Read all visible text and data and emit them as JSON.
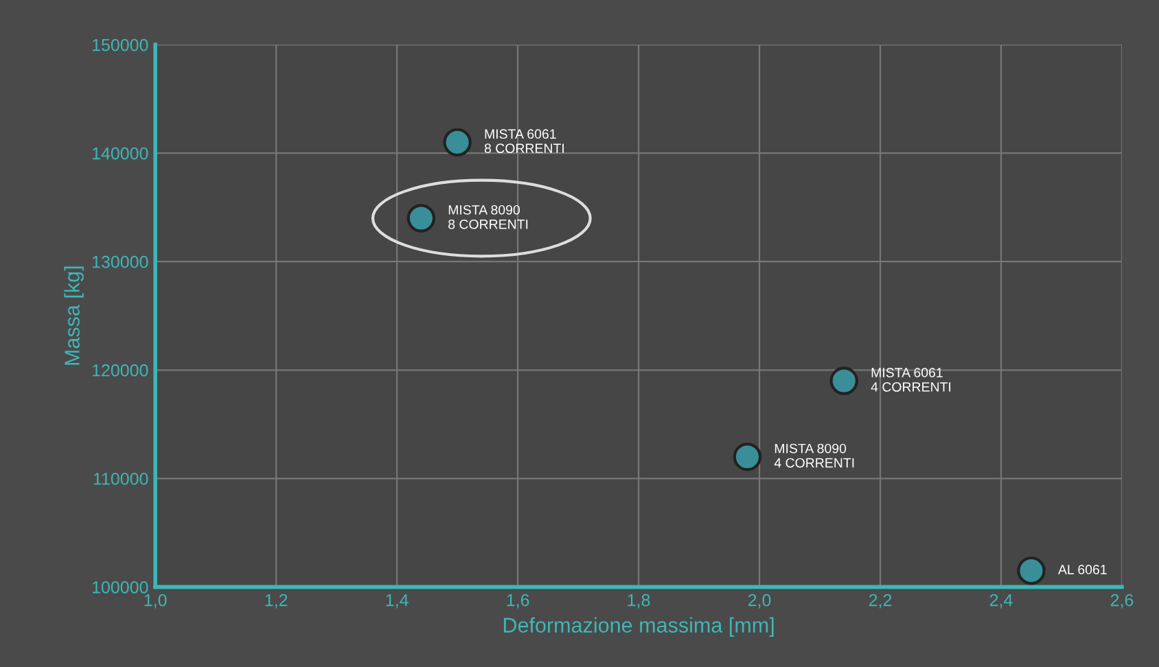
{
  "chart_data": {
    "type": "scatter",
    "xlabel": "Deformazione massima [mm]",
    "ylabel": "Massa [kg]",
    "x": [
      1.5,
      1.44,
      2.14,
      1.98,
      2.45
    ],
    "series": [
      {
        "color": "#3a8e98",
        "values": [
          141000,
          134000,
          119000,
          112000,
          101500
        ]
      }
    ],
    "annotations": [
      {
        "text": "MISTA 6061\n8 CORRENTI",
        "x": 1.5,
        "y": 141000
      },
      {
        "text": "MISTA 8090\n8 CORRENTI",
        "x": 1.44,
        "y": 134000
      },
      {
        "text": "MISTA 6061\n4 CORRENTI",
        "x": 2.14,
        "y": 119000
      },
      {
        "text": "MISTA 8090\n4 CORRENTI",
        "x": 1.98,
        "y": 112000
      },
      {
        "text": "AL 6061",
        "x": 2.45,
        "y": 101500
      }
    ],
    "xlim": [
      1.0,
      2.6
    ],
    "xticks": [
      {
        "value": 1.0,
        "label": "1,0"
      },
      {
        "value": 1.2,
        "label": "1,2"
      },
      {
        "value": 1.4,
        "label": "1,4"
      },
      {
        "value": 1.6,
        "label": "1,6"
      },
      {
        "value": 1.8,
        "label": "1,8"
      },
      {
        "value": 2.0,
        "label": "2,0"
      },
      {
        "value": 2.2,
        "label": "2,2"
      },
      {
        "value": 2.4,
        "label": "2,4"
      },
      {
        "value": 2.6,
        "label": "2,6"
      }
    ],
    "ylim": [
      100000,
      150000
    ],
    "yticks": [
      100000,
      110000,
      120000,
      130000,
      140000,
      150000
    ],
    "grid": true,
    "marker": "circle",
    "legend": false
  }
}
